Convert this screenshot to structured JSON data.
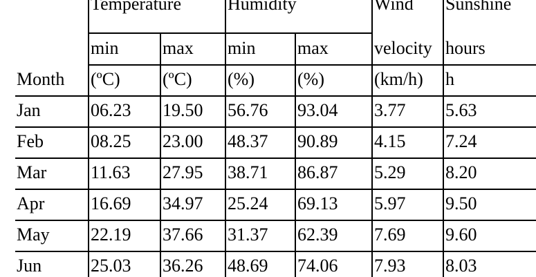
{
  "table": {
    "group_headers": [
      "Temperature",
      "Humidity",
      "Wind",
      "Sunshine"
    ],
    "subheaders": [
      "min",
      "max",
      "min",
      "max",
      "velocity",
      "hours"
    ],
    "unit_header_label": "Month",
    "units": [
      "(ºC)",
      "(ºC)",
      "(%)",
      "(%)",
      "(km/h)",
      "h"
    ],
    "rows": [
      {
        "month": "Jan",
        "tmin": "06.23",
        "tmax": "19.50",
        "hmin": "56.76",
        "hmax": "93.04",
        "wind": "3.77",
        "sun": "5.63"
      },
      {
        "month": "Feb",
        "tmin": "08.25",
        "tmax": "23.00",
        "hmin": "48.37",
        "hmax": "90.89",
        "wind": "4.15",
        "sun": "7.24"
      },
      {
        "month": "Mar",
        "tmin": "11.63",
        "tmax": "27.95",
        "hmin": "38.71",
        "hmax": "86.87",
        "wind": "5.29",
        "sun": "8.20"
      },
      {
        "month": "Apr",
        "tmin": "16.69",
        "tmax": "34.97",
        "hmin": "25.24",
        "hmax": "69.13",
        "wind": "5.97",
        "sun": "9.50"
      },
      {
        "month": "May",
        "tmin": "22.19",
        "tmax": "37.66",
        "hmin": "31.37",
        "hmax": "62.39",
        "wind": "7.69",
        "sun": "9.60"
      },
      {
        "month": "Jun",
        "tmin": "25.03",
        "tmax": "36.26",
        "hmin": "48.69",
        "hmax": "74.06",
        "wind": "7.93",
        "sun": "8.03"
      }
    ]
  }
}
